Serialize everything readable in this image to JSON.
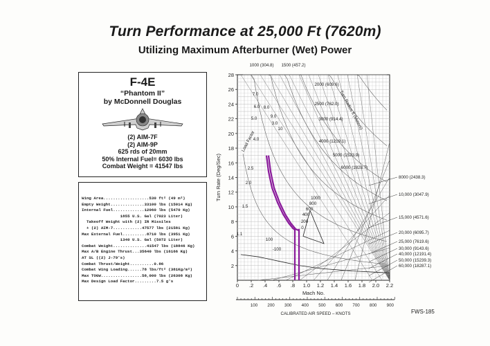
{
  "title": "Turn Performance at 25,000 Ft (7620m)",
  "subtitle": "Utilizing Maximum Afterburner (Wet) Power",
  "aircraft": {
    "model": "F-4E",
    "name": "“Phantom II”",
    "maker": "by McDonnell Douglas",
    "armament": [
      "(2) AIM-7F",
      "(2) AIM-9P",
      "625 rds of 20mm",
      "50% Internal Fuel= 6030 lbs",
      "Combat Weight = 41547 lbs"
    ]
  },
  "specs": [
    "Wing Area...................530 ft² (49 m²)",
    "Empty Weight..............33100 lbs (15014 Kg)",
    "Internal Fuel.............12060 lbs (5470 Kg)",
    "                1855 U.S. Gal (7023 Liter)",
    "  Takeoff Weight with (2) IR Missiles",
    "  + (2) AIM-7............47577 lbs (21581 Kg)",
    "Max External Fuel..........8710 lbs (3951 Kg)",
    "                1340 U.S. Gal (5072 Liter)",
    "Combat Weight..............41547 lbs (18846 Kg)",
    "Max A/B Engine Thrust...35640 lbs (16166 Kg)",
    "AT SL ((2) J-79's)",
    "Combat Thrust/Weight..........0.86",
    "Combat Wing Loading......78 lbs/ft² (381Kg/m²)",
    "Max TOGW.................58,000 lbs (26308 Kg)",
    "Max Design Load Factor.........7.5 g's"
  ],
  "figure_no": "FWS-185",
  "chart_data": {
    "type": "line",
    "title": "Turn Performance at 25,000 Ft (7620m)",
    "xlabel": "Mach No.",
    "ylabel": "Turn Rate (Deg/Sec)",
    "x2label": "CALIBRATED AIR SPEED – KNOTS",
    "xlim": [
      0,
      2.2
    ],
    "ylim": [
      0,
      28
    ],
    "xticks": [
      "0",
      ".2",
      ".4",
      ".6",
      ".8",
      "1.0",
      "1.2",
      "1.4",
      "1.6",
      "1.8",
      "2.0",
      "2.2"
    ],
    "yticks": [
      "2",
      "4",
      "6",
      "8",
      "10",
      "12",
      "14",
      "16",
      "18",
      "20",
      "22",
      "24",
      "26",
      "28"
    ],
    "cas_ticks": [
      "100",
      "200",
      "300",
      "400",
      "500",
      "600",
      "700",
      "800",
      "900"
    ],
    "radius_labels": [
      "1000 (304.8)",
      "1500 (457.2)",
      "2000 (609.6)",
      "2500 (762.0)",
      "3000 (914.4)",
      "4000 (1219.1)",
      "5000 (1523.9)",
      "6000 (1828.7)"
    ],
    "radius_title": "Turn Radius ft (Meters)",
    "g_labels": [
      "7.0",
      "6.0",
      "5.0",
      "4.0",
      "3.0",
      "2.5",
      "2.0",
      "1.5",
      "1.1",
      "8.0",
      "9.0",
      "10"
    ],
    "load_factor_label": "Load Factor",
    "ps_labels": [
      "1000",
      "800",
      "600",
      "400",
      "200",
      "0",
      "100",
      "-100"
    ],
    "altitude_labels": [
      "8000 (2438.3)",
      "10,000 (3047.9)",
      "15,000 (4571.6)",
      "20,000 (6095.7)",
      "25,000 (7619.6)",
      "30,000 (9143.6)",
      "40,000 (12191.4)",
      "50,000 (15239.3)",
      "60,000 (18287.1)"
    ],
    "series": [
      {
        "color": "#8a1a9b",
        "x": [
          0.42,
          0.45,
          0.5,
          0.58,
          0.66,
          0.74,
          0.8,
          0.84
        ],
        "y": [
          17.0,
          14.8,
          12.6,
          10.6,
          9.0,
          7.8,
          7.1,
          6.8
        ]
      },
      {
        "color": "#8a1a9b",
        "x": [
          0.45,
          0.48,
          0.53,
          0.61,
          0.69,
          0.77,
          0.84,
          0.88
        ],
        "y": [
          17.0,
          14.8,
          12.6,
          10.6,
          9.0,
          7.8,
          7.0,
          6.8
        ]
      },
      {
        "color": "#8a1a9b",
        "x": [
          0.83,
          0.83
        ],
        "y": [
          7.0,
          0
        ]
      },
      {
        "color": "#8a1a9b",
        "x": [
          0.89,
          0.89
        ],
        "y": [
          7.0,
          0
        ]
      }
    ]
  }
}
